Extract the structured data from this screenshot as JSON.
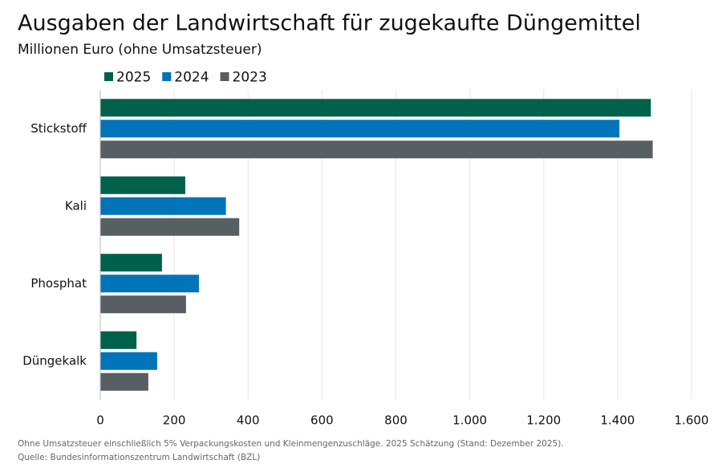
{
  "chart_data": {
    "type": "bar",
    "orientation": "horizontal",
    "title": "Ausgaben der Landwirtschaft für zugekaufte Düngemittel",
    "subtitle": "Millionen Euro (ohne Umsatzsteuer)",
    "categories": [
      "Stickstoff",
      "Kali",
      "Phosphat",
      "Düngekalk"
    ],
    "series": [
      {
        "name": "2025",
        "color": "#00614a",
        "values": [
          1490,
          230,
          167,
          98
        ]
      },
      {
        "name": "2024",
        "color": "#0074b8",
        "values": [
          1405,
          340,
          267,
          154
        ]
      },
      {
        "name": "2023",
        "color": "#575f63",
        "values": [
          1495,
          376,
          232,
          130
        ]
      }
    ],
    "xlim": [
      0,
      1600
    ],
    "xticks": [
      0,
      200,
      400,
      600,
      800,
      {
        "value": 1000,
        "label": "1.000"
      },
      {
        "value": 1200,
        "label": "1.200"
      },
      {
        "value": 1400,
        "label": "1.400"
      },
      {
        "value": 1600,
        "label": "1.600"
      }
    ],
    "grid": true,
    "notes": [
      "Ohne Umsatzsteuer einschließlich 5% Verpackungskosten und Kleinmengenzuschläge. 2025 Schätzung (Stand: Dezember 2025).",
      "Quelle: Bundesinformationszentrum Landwirtschaft (BZL)"
    ]
  }
}
